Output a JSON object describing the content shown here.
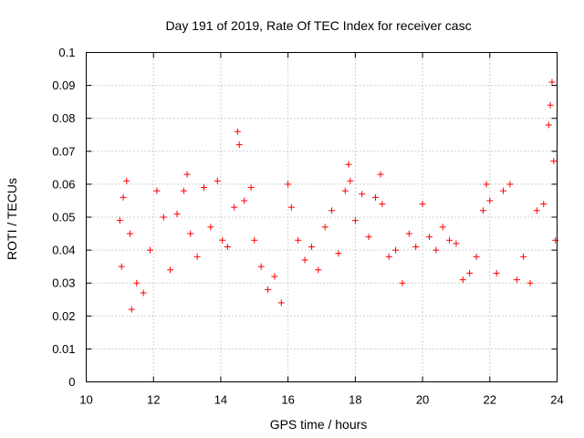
{
  "chart_data": {
    "type": "scatter",
    "title": "Day 191 of 2019, Rate Of TEC Index for receiver casc",
    "xlabel": "GPS time / hours",
    "ylabel": "ROTI / TECUs",
    "xlim": [
      10,
      24
    ],
    "ylim": [
      0,
      0.1
    ],
    "grid": true,
    "marker": "+",
    "color": "#ff0000",
    "x_ticks": [
      10,
      12,
      14,
      16,
      18,
      20,
      22,
      24
    ],
    "x_tick_labels": [
      "10",
      "12",
      "14",
      "16",
      "18",
      "20",
      "22",
      "24"
    ],
    "y_ticks": [
      0,
      0.01,
      0.02,
      0.03,
      0.04,
      0.05,
      0.06,
      0.07,
      0.08,
      0.09,
      0.1
    ],
    "y_tick_labels": [
      "0",
      "0.01",
      "0.02",
      "0.03",
      "0.04",
      "0.05",
      "0.06",
      "0.07",
      "0.08",
      "0.09",
      "0.1"
    ],
    "series": [
      {
        "name": "ROTI",
        "x": [
          11.0,
          11.05,
          11.1,
          11.2,
          11.3,
          11.35,
          11.5,
          11.7,
          11.9,
          12.1,
          12.3,
          12.5,
          12.7,
          12.9,
          13.0,
          13.1,
          13.3,
          13.5,
          13.7,
          13.9,
          14.05,
          14.2,
          14.4,
          14.5,
          14.55,
          14.7,
          14.9,
          15.0,
          15.2,
          15.4,
          15.6,
          15.8,
          16.0,
          16.1,
          16.3,
          16.5,
          16.7,
          16.9,
          17.1,
          17.3,
          17.5,
          17.7,
          17.8,
          17.85,
          18.0,
          18.2,
          18.4,
          18.6,
          18.75,
          18.8,
          19.0,
          19.2,
          19.4,
          19.6,
          19.8,
          20.0,
          20.2,
          20.4,
          20.6,
          20.8,
          21.0,
          21.2,
          21.4,
          21.6,
          21.8,
          21.9,
          22.0,
          22.2,
          22.4,
          22.6,
          22.8,
          23.0,
          23.2,
          23.4,
          23.6,
          23.75,
          23.8,
          23.85,
          23.9,
          23.95
        ],
        "y": [
          0.049,
          0.035,
          0.056,
          0.061,
          0.045,
          0.022,
          0.03,
          0.027,
          0.04,
          0.058,
          0.05,
          0.034,
          0.051,
          0.058,
          0.063,
          0.045,
          0.038,
          0.059,
          0.047,
          0.061,
          0.043,
          0.041,
          0.053,
          0.076,
          0.072,
          0.055,
          0.059,
          0.043,
          0.035,
          0.028,
          0.032,
          0.024,
          0.06,
          0.053,
          0.043,
          0.037,
          0.041,
          0.034,
          0.047,
          0.052,
          0.039,
          0.058,
          0.066,
          0.061,
          0.049,
          0.057,
          0.044,
          0.056,
          0.063,
          0.054,
          0.038,
          0.04,
          0.03,
          0.045,
          0.041,
          0.054,
          0.044,
          0.04,
          0.047,
          0.043,
          0.042,
          0.031,
          0.033,
          0.038,
          0.052,
          0.06,
          0.055,
          0.033,
          0.058,
          0.06,
          0.031,
          0.038,
          0.03,
          0.052,
          0.054,
          0.078,
          0.084,
          0.091,
          0.067,
          0.043
        ]
      }
    ]
  }
}
